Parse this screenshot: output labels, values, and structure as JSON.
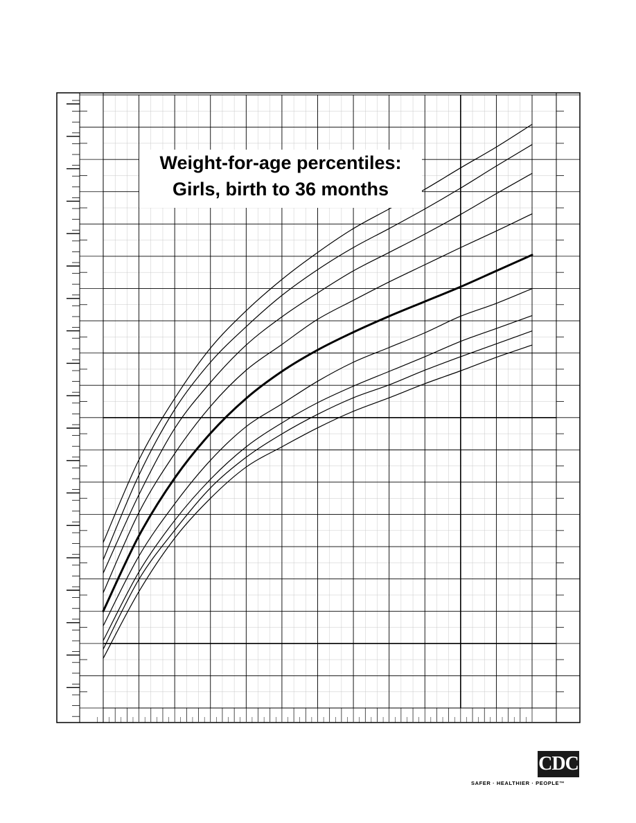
{
  "chart_data": {
    "type": "line",
    "title": "Weight-for-age percentiles:",
    "subtitle": "Girls, birth to 36 months",
    "x_range": [
      0,
      36
    ],
    "y_range": [
      0,
      100
    ],
    "grid": true,
    "x": [
      0,
      3,
      6,
      9,
      12,
      15,
      18,
      21,
      24,
      27,
      30,
      33,
      36
    ],
    "emphasized_series_index": 4,
    "series": [
      {
        "values": [
          27.0,
          40.5,
          50.5,
          58.7,
          64.8,
          69.9,
          74.3,
          78.2,
          81.4,
          84.6,
          88.1,
          91.5,
          95.2
        ]
      },
      {
        "values": [
          24.2,
          38.0,
          48.7,
          56.4,
          62.2,
          67.3,
          71.5,
          75.1,
          78.2,
          81.4,
          84.8,
          88.4,
          91.9
        ]
      },
      {
        "values": [
          22.0,
          34.8,
          45.6,
          53.1,
          59.2,
          63.8,
          67.7,
          71.3,
          74.3,
          77.3,
          80.5,
          83.9,
          87.2
        ]
      },
      {
        "values": [
          18.8,
          31.9,
          41.5,
          49.2,
          55.1,
          59.3,
          63.4,
          66.5,
          69.5,
          72.3,
          75.1,
          77.8,
          80.6
        ]
      },
      {
        "values": [
          15.8,
          28.1,
          37.5,
          44.8,
          50.5,
          54.9,
          58.4,
          61.3,
          63.9,
          66.3,
          68.7,
          71.3,
          73.9
        ]
      },
      {
        "values": [
          13.4,
          24.8,
          33.3,
          40.4,
          45.9,
          49.6,
          53.3,
          56.4,
          58.8,
          61.2,
          63.9,
          66.0,
          68.4
        ]
      },
      {
        "values": [
          11.0,
          22.2,
          30.6,
          37.3,
          42.6,
          46.5,
          49.8,
          52.5,
          54.9,
          57.3,
          59.8,
          61.9,
          64.0
        ]
      },
      {
        "values": [
          9.6,
          21.0,
          29.0,
          35.9,
          40.9,
          44.7,
          47.9,
          50.6,
          52.7,
          55.1,
          57.3,
          59.4,
          61.5
        ]
      },
      {
        "values": [
          8.1,
          19.0,
          27.7,
          34.2,
          39.3,
          42.6,
          45.7,
          48.4,
          50.6,
          52.9,
          55.0,
          57.2,
          59.2
        ]
      }
    ]
  },
  "header": {
    "title_line1": "Weight-for-age percentiles:",
    "title_line2": "Girls, birth to 36 months"
  },
  "footer": {
    "logo_text": "CDC",
    "tagline": "SAFER · HEALTHIER · PEOPLE™"
  }
}
